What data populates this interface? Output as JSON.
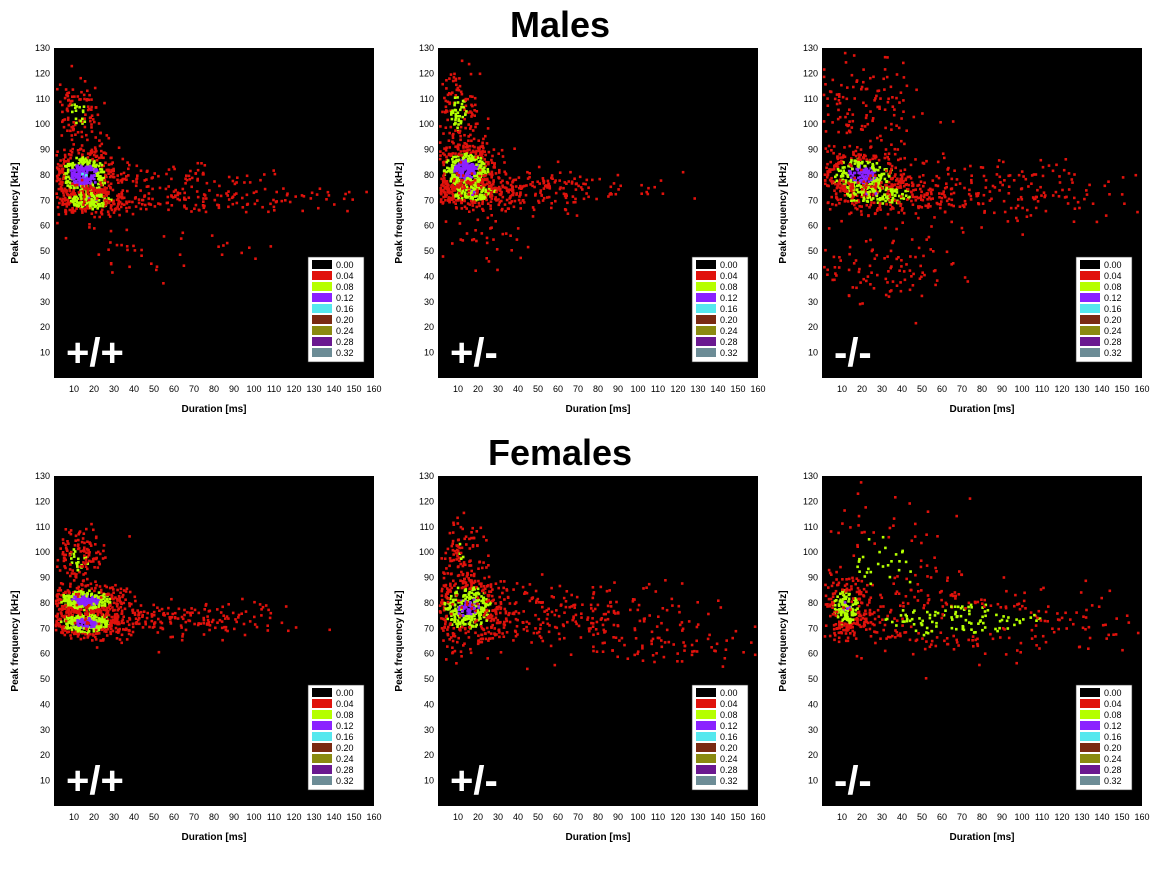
{
  "group_titles": {
    "males": "Males",
    "females": "Females"
  },
  "colors": {
    "background": "#000000",
    "scale": [
      "#000000",
      "#e0120c",
      "#b5ff00",
      "#8a22ff",
      "#55e8ee",
      "#7a2a12",
      "#8a8a10",
      "#6a1890",
      "#6c8c96"
    ]
  },
  "chart_data": [
    {
      "type": "heatmap",
      "group": "Males",
      "genotype": "+/+",
      "xlabel": "Duration [ms]",
      "ylabel": "Peak frequency [kHz]",
      "xlim": [
        0,
        160
      ],
      "ylim": [
        0,
        130
      ],
      "x_ticks": [
        10,
        20,
        30,
        40,
        50,
        60,
        70,
        80,
        90,
        100,
        110,
        120,
        130,
        140,
        150,
        160
      ],
      "y_ticks": [
        10,
        20,
        30,
        40,
        50,
        60,
        70,
        80,
        90,
        100,
        110,
        120,
        130
      ],
      "legend_values": [
        "0.00",
        "0.04",
        "0.08",
        "0.12",
        "0.16",
        "0.20",
        "0.24",
        "0.28",
        "0.32"
      ],
      "legend_position": "bottom-right",
      "clusters": [
        {
          "x": 15,
          "y": 80,
          "sx": 8,
          "sy": 5,
          "n": 520,
          "level": 0.14
        },
        {
          "x": 18,
          "y": 70,
          "sx": 10,
          "sy": 3,
          "n": 260,
          "level": 0.1
        },
        {
          "x": 12,
          "y": 104,
          "sx": 6,
          "sy": 7,
          "n": 110,
          "level": 0.07
        },
        {
          "x": 70,
          "y": 70,
          "sx": 40,
          "sy": 2.5,
          "n": 170,
          "level": 0.04
        },
        {
          "x": 60,
          "y": 79,
          "sx": 25,
          "sy": 2.5,
          "n": 70,
          "level": 0.04
        },
        {
          "x": 40,
          "y": 52,
          "sx": 30,
          "sy": 6,
          "n": 45,
          "level": 0.03
        }
      ]
    },
    {
      "type": "heatmap",
      "group": "Males",
      "genotype": "+/-",
      "xlabel": "Duration [ms]",
      "ylabel": "Peak frequency [kHz]",
      "xlim": [
        0,
        160
      ],
      "ylim": [
        0,
        130
      ],
      "x_ticks": [
        10,
        20,
        30,
        40,
        50,
        60,
        70,
        80,
        90,
        100,
        110,
        120,
        130,
        140,
        150,
        160
      ],
      "y_ticks": [
        10,
        20,
        30,
        40,
        50,
        60,
        70,
        80,
        90,
        100,
        110,
        120,
        130
      ],
      "legend_values": [
        "0.00",
        "0.04",
        "0.08",
        "0.12",
        "0.16",
        "0.20",
        "0.24",
        "0.28",
        "0.32"
      ],
      "legend_position": "bottom-right",
      "clusters": [
        {
          "x": 14,
          "y": 82,
          "sx": 8,
          "sy": 5,
          "n": 520,
          "level": 0.13
        },
        {
          "x": 18,
          "y": 73,
          "sx": 10,
          "sy": 3,
          "n": 260,
          "level": 0.1
        },
        {
          "x": 10,
          "y": 104,
          "sx": 5,
          "sy": 8,
          "n": 150,
          "level": 0.08
        },
        {
          "x": 50,
          "y": 74,
          "sx": 28,
          "sy": 4,
          "n": 190,
          "level": 0.04
        },
        {
          "x": 25,
          "y": 60,
          "sx": 14,
          "sy": 8,
          "n": 45,
          "level": 0.03
        }
      ]
    },
    {
      "type": "heatmap",
      "group": "Males",
      "genotype": "-/-",
      "xlabel": "Duration [ms]",
      "ylabel": "Peak frequency [kHz]",
      "xlim": [
        0,
        160
      ],
      "ylim": [
        0,
        130
      ],
      "x_ticks": [
        10,
        20,
        30,
        40,
        50,
        60,
        70,
        80,
        90,
        100,
        110,
        120,
        130,
        140,
        150,
        160
      ],
      "y_ticks": [
        10,
        20,
        30,
        40,
        50,
        60,
        70,
        80,
        90,
        100,
        110,
        120,
        130
      ],
      "legend_values": [
        "0.00",
        "0.04",
        "0.08",
        "0.12",
        "0.16",
        "0.20",
        "0.24",
        "0.28",
        "0.32"
      ],
      "legend_position": "bottom-right",
      "clusters": [
        {
          "x": 20,
          "y": 80,
          "sx": 12,
          "sy": 5,
          "n": 420,
          "level": 0.12
        },
        {
          "x": 28,
          "y": 72,
          "sx": 16,
          "sy": 3,
          "n": 260,
          "level": 0.1
        },
        {
          "x": 20,
          "y": 105,
          "sx": 14,
          "sy": 10,
          "n": 150,
          "level": 0.05
        },
        {
          "x": 75,
          "y": 74,
          "sx": 40,
          "sy": 6,
          "n": 260,
          "level": 0.05
        },
        {
          "x": 30,
          "y": 44,
          "sx": 22,
          "sy": 8,
          "n": 110,
          "level": 0.04
        }
      ]
    },
    {
      "type": "heatmap",
      "group": "Females",
      "genotype": "+/+",
      "xlabel": "Duration [ms]",
      "ylabel": "Peak frequency [kHz]",
      "xlim": [
        0,
        160
      ],
      "ylim": [
        0,
        130
      ],
      "x_ticks": [
        10,
        20,
        30,
        40,
        50,
        60,
        70,
        80,
        90,
        100,
        110,
        120,
        130,
        140,
        150,
        160
      ],
      "y_ticks": [
        10,
        20,
        30,
        40,
        50,
        60,
        70,
        80,
        90,
        100,
        110,
        120,
        130
      ],
      "legend_values": [
        "0.00",
        "0.04",
        "0.08",
        "0.12",
        "0.16",
        "0.20",
        "0.24",
        "0.28",
        "0.32"
      ],
      "legend_position": "bottom-right",
      "clusters": [
        {
          "x": 16,
          "y": 81,
          "sx": 10,
          "sy": 3,
          "n": 420,
          "level": 0.12
        },
        {
          "x": 16,
          "y": 72,
          "sx": 10,
          "sy": 3,
          "n": 420,
          "level": 0.12
        },
        {
          "x": 12,
          "y": 97,
          "sx": 7,
          "sy": 6,
          "n": 150,
          "level": 0.07
        },
        {
          "x": 60,
          "y": 73,
          "sx": 28,
          "sy": 4,
          "n": 200,
          "level": 0.04
        }
      ]
    },
    {
      "type": "heatmap",
      "group": "Females",
      "genotype": "+/-",
      "xlabel": "Duration [ms]",
      "ylabel": "Peak frequency [kHz]",
      "xlim": [
        0,
        160
      ],
      "ylim": [
        0,
        130
      ],
      "x_ticks": [
        10,
        20,
        30,
        40,
        50,
        60,
        70,
        80,
        90,
        100,
        110,
        120,
        130,
        140,
        150,
        160
      ],
      "y_ticks": [
        10,
        20,
        30,
        40,
        50,
        60,
        70,
        80,
        90,
        100,
        110,
        120,
        130
      ],
      "legend_values": [
        "0.00",
        "0.04",
        "0.08",
        "0.12",
        "0.16",
        "0.20",
        "0.24",
        "0.28",
        "0.32"
      ],
      "legend_position": "bottom-right",
      "clusters": [
        {
          "x": 15,
          "y": 78,
          "sx": 10,
          "sy": 7,
          "n": 520,
          "level": 0.11
        },
        {
          "x": 12,
          "y": 100,
          "sx": 6,
          "sy": 7,
          "n": 100,
          "level": 0.06
        },
        {
          "x": 60,
          "y": 75,
          "sx": 38,
          "sy": 6,
          "n": 270,
          "level": 0.04
        },
        {
          "x": 120,
          "y": 62,
          "sx": 25,
          "sy": 3,
          "n": 60,
          "level": 0.03
        }
      ]
    },
    {
      "type": "heatmap",
      "group": "Females",
      "genotype": "-/-",
      "xlabel": "Duration [ms]",
      "ylabel": "Peak frequency [kHz]",
      "xlim": [
        0,
        160
      ],
      "ylim": [
        0,
        130
      ],
      "x_ticks": [
        10,
        20,
        30,
        40,
        50,
        60,
        70,
        80,
        90,
        100,
        110,
        120,
        130,
        140,
        150,
        160
      ],
      "y_ticks": [
        10,
        20,
        30,
        40,
        50,
        60,
        70,
        80,
        90,
        100,
        110,
        120,
        130
      ],
      "legend_values": [
        "0.00",
        "0.04",
        "0.08",
        "0.12",
        "0.16",
        "0.20",
        "0.24",
        "0.28",
        "0.32"
      ],
      "legend_position": "bottom-right",
      "clusters": [
        {
          "x": 12,
          "y": 78,
          "sx": 6,
          "sy": 6,
          "n": 240,
          "level": 0.1
        },
        {
          "x": 70,
          "y": 73,
          "sx": 45,
          "sy": 7,
          "n": 360,
          "level": 0.08
        },
        {
          "x": 30,
          "y": 95,
          "sx": 20,
          "sy": 14,
          "n": 120,
          "level": 0.08
        }
      ]
    }
  ]
}
